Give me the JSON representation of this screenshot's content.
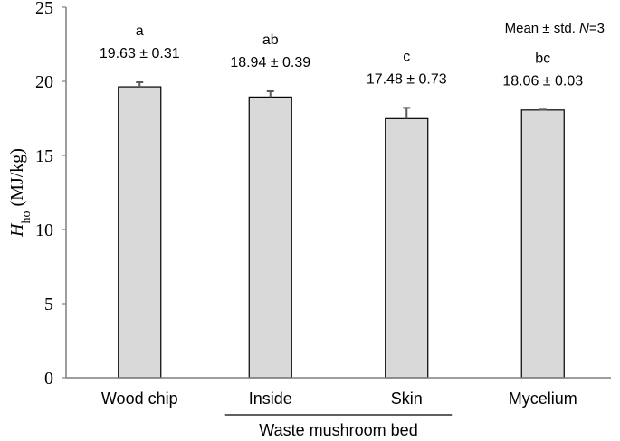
{
  "chart_data": {
    "type": "bar",
    "categories": [
      "Wood chip",
      "Inside",
      "Skin",
      "Mycelium"
    ],
    "values": [
      19.63,
      18.94,
      17.48,
      18.06
    ],
    "errors": [
      0.31,
      0.39,
      0.73,
      0.03
    ],
    "letters": [
      "a",
      "ab",
      "c",
      "bc"
    ],
    "value_labels": [
      "19.63 ± 0.31",
      "18.94 ± 0.39",
      "17.48 ± 0.73",
      "18.06 ± 0.03"
    ],
    "group_label": "Waste mushroom bed",
    "group_members": [
      "Inside",
      "Skin"
    ],
    "ylabel": {
      "symbol": "H",
      "subscript": "ho",
      "unit": " (MJ/kg)"
    },
    "legend_note": {
      "prefix": "Mean ± std. ",
      "n_symbol": "N",
      "n_value": "=3"
    },
    "ylim": [
      0,
      25
    ],
    "yticks": [
      0,
      5,
      10,
      15,
      20,
      25
    ],
    "bar_color": "#d9d9d9",
    "grid": false
  }
}
